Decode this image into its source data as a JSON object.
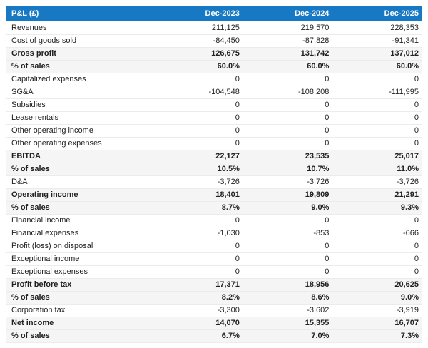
{
  "table": {
    "header": {
      "label": "P&L (£)",
      "columns": [
        "Dec-2023",
        "Dec-2024",
        "Dec-2025"
      ]
    },
    "rows": [
      {
        "label": "Revenues",
        "values": [
          "211,125",
          "219,570",
          "228,353"
        ],
        "emphasis": false
      },
      {
        "label": "Cost of goods sold",
        "values": [
          "-84,450",
          "-87,828",
          "-91,341"
        ],
        "emphasis": false
      },
      {
        "label": "Gross profit",
        "values": [
          "126,675",
          "131,742",
          "137,012"
        ],
        "emphasis": true
      },
      {
        "label": "% of sales",
        "values": [
          "60.0%",
          "60.0%",
          "60.0%"
        ],
        "emphasis": true
      },
      {
        "label": "Capitalized expenses",
        "values": [
          "0",
          "0",
          "0"
        ],
        "emphasis": false
      },
      {
        "label": "SG&A",
        "values": [
          "-104,548",
          "-108,208",
          "-111,995"
        ],
        "emphasis": false
      },
      {
        "label": "Subsidies",
        "values": [
          "0",
          "0",
          "0"
        ],
        "emphasis": false
      },
      {
        "label": "Lease rentals",
        "values": [
          "0",
          "0",
          "0"
        ],
        "emphasis": false
      },
      {
        "label": "Other operating income",
        "values": [
          "0",
          "0",
          "0"
        ],
        "emphasis": false
      },
      {
        "label": "Other operating expenses",
        "values": [
          "0",
          "0",
          "0"
        ],
        "emphasis": false
      },
      {
        "label": "EBITDA",
        "values": [
          "22,127",
          "23,535",
          "25,017"
        ],
        "emphasis": true
      },
      {
        "label": "% of sales",
        "values": [
          "10.5%",
          "10.7%",
          "11.0%"
        ],
        "emphasis": true
      },
      {
        "label": "D&A",
        "values": [
          "-3,726",
          "-3,726",
          "-3,726"
        ],
        "emphasis": false
      },
      {
        "label": "Operating income",
        "values": [
          "18,401",
          "19,809",
          "21,291"
        ],
        "emphasis": true
      },
      {
        "label": "% of sales",
        "values": [
          "8.7%",
          "9.0%",
          "9.3%"
        ],
        "emphasis": true
      },
      {
        "label": "Financial income",
        "values": [
          "0",
          "0",
          "0"
        ],
        "emphasis": false
      },
      {
        "label": "Financial expenses",
        "values": [
          "-1,030",
          "-853",
          "-666"
        ],
        "emphasis": false
      },
      {
        "label": "Profit (loss) on disposal",
        "values": [
          "0",
          "0",
          "0"
        ],
        "emphasis": false
      },
      {
        "label": "Exceptional income",
        "values": [
          "0",
          "0",
          "0"
        ],
        "emphasis": false
      },
      {
        "label": "Exceptional expenses",
        "values": [
          "0",
          "0",
          "0"
        ],
        "emphasis": false
      },
      {
        "label": "Profit before tax",
        "values": [
          "17,371",
          "18,956",
          "20,625"
        ],
        "emphasis": true
      },
      {
        "label": "% of sales",
        "values": [
          "8.2%",
          "8.6%",
          "9.0%"
        ],
        "emphasis": true
      },
      {
        "label": "Corporation tax",
        "values": [
          "-3,300",
          "-3,602",
          "-3,919"
        ],
        "emphasis": false
      },
      {
        "label": "Net income",
        "values": [
          "14,070",
          "15,355",
          "16,707"
        ],
        "emphasis": true
      },
      {
        "label": "% of sales",
        "values": [
          "6.7%",
          "7.0%",
          "7.3%"
        ],
        "emphasis": true
      }
    ],
    "colors": {
      "header_bg": "#1778c4",
      "header_text": "#ffffff",
      "emphasis_bg": "#f5f5f5",
      "row_border": "#ececec",
      "text": "#212121"
    }
  },
  "chart_data": {
    "type": "table",
    "title": "P&L (£) forecast",
    "columns": [
      "P&L (£)",
      "Dec-2023",
      "Dec-2024",
      "Dec-2025"
    ],
    "rows": [
      [
        "Revenues",
        211125,
        219570,
        228353
      ],
      [
        "Cost of goods sold",
        -84450,
        -87828,
        -91341
      ],
      [
        "Gross profit",
        126675,
        131742,
        137012
      ],
      [
        "% of sales",
        "60.0%",
        "60.0%",
        "60.0%"
      ],
      [
        "Capitalized expenses",
        0,
        0,
        0
      ],
      [
        "SG&A",
        -104548,
        -108208,
        -111995
      ],
      [
        "Subsidies",
        0,
        0,
        0
      ],
      [
        "Lease rentals",
        0,
        0,
        0
      ],
      [
        "Other operating income",
        0,
        0,
        0
      ],
      [
        "Other operating expenses",
        0,
        0,
        0
      ],
      [
        "EBITDA",
        22127,
        23535,
        25017
      ],
      [
        "% of sales",
        "10.5%",
        "10.7%",
        "11.0%"
      ],
      [
        "D&A",
        -3726,
        -3726,
        -3726
      ],
      [
        "Operating income",
        18401,
        19809,
        21291
      ],
      [
        "% of sales",
        "8.7%",
        "9.0%",
        "9.3%"
      ],
      [
        "Financial income",
        0,
        0,
        0
      ],
      [
        "Financial expenses",
        -1030,
        -853,
        -666
      ],
      [
        "Profit (loss) on disposal",
        0,
        0,
        0
      ],
      [
        "Exceptional income",
        0,
        0,
        0
      ],
      [
        "Exceptional expenses",
        0,
        0,
        0
      ],
      [
        "Profit before tax",
        17371,
        18956,
        20625
      ],
      [
        "% of sales",
        "8.2%",
        "8.6%",
        "9.0%"
      ],
      [
        "Corporation tax",
        -3300,
        -3602,
        -3919
      ],
      [
        "Net income",
        14070,
        15355,
        16707
      ],
      [
        "% of sales",
        "6.7%",
        "7.0%",
        "7.3%"
      ]
    ]
  }
}
